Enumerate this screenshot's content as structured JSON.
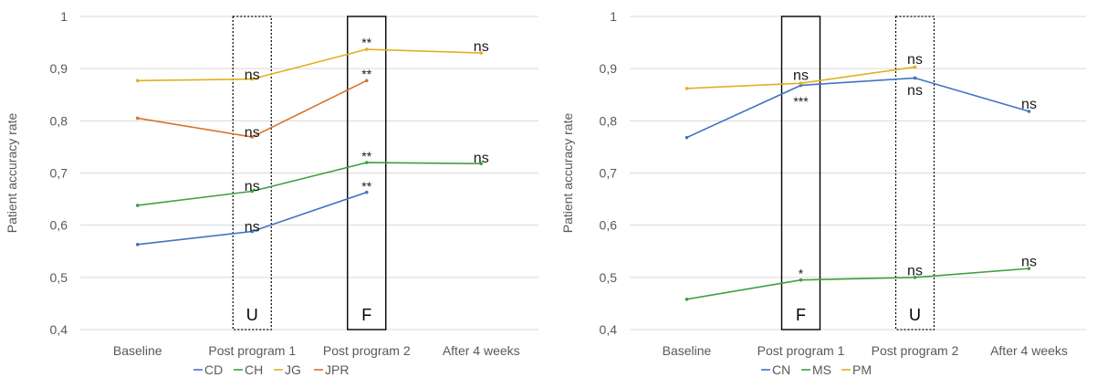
{
  "chart_data": [
    {
      "type": "line",
      "title": "",
      "xlabel": "",
      "ylabel": "Patient accuracy rate",
      "ylim": [
        0.4,
        1.0
      ],
      "yticks": [
        0.4,
        0.5,
        0.6,
        0.7,
        0.8,
        0.9,
        1.0
      ],
      "ytick_labels": [
        "0,4",
        "0,5",
        "0,6",
        "0,7",
        "0,8",
        "0,9",
        "1"
      ],
      "grid": true,
      "legend_position": "bottom",
      "categories": [
        "Baseline",
        "Post program 1",
        "Post program 2",
        "After 4 weeks"
      ],
      "series": [
        {
          "name": "CD",
          "color": "#4472c4",
          "values": [
            0.563,
            0.588,
            0.663,
            null
          ]
        },
        {
          "name": "CH",
          "color": "#3f9f42",
          "values": [
            0.638,
            0.665,
            0.72,
            0.718
          ]
        },
        {
          "name": "JG",
          "color": "#e0b020",
          "values": [
            0.877,
            0.88,
            0.937,
            0.93
          ]
        },
        {
          "name": "JPR",
          "color": "#d9722e",
          "values": [
            0.805,
            0.769,
            0.877,
            null
          ]
        }
      ],
      "boxes": [
        {
          "category_index": 1,
          "label": "U",
          "style": "dotted"
        },
        {
          "category_index": 2,
          "label": "F",
          "style": "solid"
        }
      ],
      "annotations": [
        {
          "text": "ns",
          "category_index": 1,
          "y": 0.888
        },
        {
          "text": "ns",
          "category_index": 1,
          "y": 0.778
        },
        {
          "text": "ns",
          "category_index": 1,
          "y": 0.675
        },
        {
          "text": "ns",
          "category_index": 1,
          "y": 0.597
        },
        {
          "text": "**",
          "category_index": 2,
          "y": 0.95
        },
        {
          "text": "**",
          "category_index": 2,
          "y": 0.89
        },
        {
          "text": "**",
          "category_index": 2,
          "y": 0.732
        },
        {
          "text": "**",
          "category_index": 2,
          "y": 0.675
        },
        {
          "text": "ns",
          "category_index": 3,
          "y": 0.942
        },
        {
          "text": "ns",
          "category_index": 3,
          "y": 0.729
        }
      ]
    },
    {
      "type": "line",
      "title": "",
      "xlabel": "",
      "ylabel": "Patient accuracy rate",
      "ylim": [
        0.4,
        1.0
      ],
      "yticks": [
        0.4,
        0.5,
        0.6,
        0.7,
        0.8,
        0.9,
        1.0
      ],
      "ytick_labels": [
        "0,4",
        "0,5",
        "0,6",
        "0,7",
        "0,8",
        "0,9",
        "1"
      ],
      "grid": true,
      "legend_position": "bottom",
      "categories": [
        "Baseline",
        "Post program 1",
        "Post program 2",
        "After 4 weeks"
      ],
      "series": [
        {
          "name": "CN",
          "color": "#4472c4",
          "values": [
            0.768,
            0.868,
            0.882,
            0.818
          ]
        },
        {
          "name": "MS",
          "color": "#3f9f42",
          "values": [
            0.458,
            0.495,
            0.5,
            0.517
          ]
        },
        {
          "name": "PM",
          "color": "#e0b020",
          "values": [
            0.862,
            0.872,
            0.903,
            null
          ]
        }
      ],
      "boxes": [
        {
          "category_index": 1,
          "label": "F",
          "style": "solid"
        },
        {
          "category_index": 2,
          "label": "U",
          "style": "dotted"
        }
      ],
      "annotations": [
        {
          "text": "ns",
          "category_index": 1,
          "y": 0.887
        },
        {
          "text": "***",
          "category_index": 1,
          "y": 0.837
        },
        {
          "text": "*",
          "category_index": 1,
          "y": 0.508
        },
        {
          "text": "ns",
          "category_index": 2,
          "y": 0.918
        },
        {
          "text": "ns",
          "category_index": 2,
          "y": 0.858
        },
        {
          "text": "ns",
          "category_index": 2,
          "y": 0.513
        },
        {
          "text": "ns",
          "category_index": 3,
          "y": 0.832
        },
        {
          "text": "ns",
          "category_index": 3,
          "y": 0.53
        }
      ]
    }
  ]
}
